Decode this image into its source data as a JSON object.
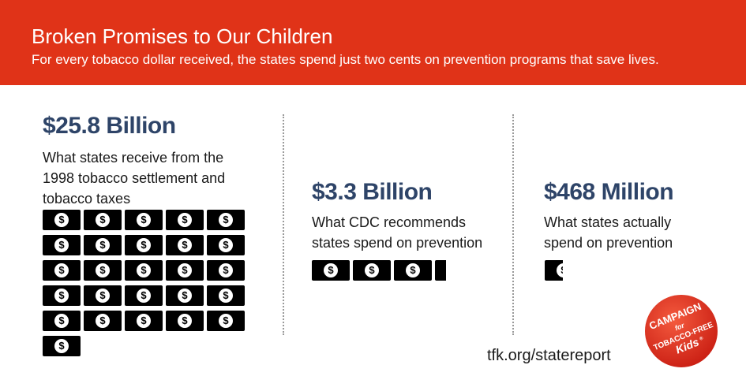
{
  "header": {
    "title": "Broken Promises to Our Children",
    "subtitle": "For every tobacco dollar received, the states spend just two cents on prevention programs that save lives."
  },
  "columns": [
    {
      "amount": "$25.8 Billion",
      "description": "What states receive from the 1998 tobacco settlement and tobacco taxes",
      "bill_count": 26
    },
    {
      "amount": "$3.3 Billion",
      "description": "What CDC recommends states spend on prevention",
      "bill_count": 3.3
    },
    {
      "amount": "$468 Million",
      "description": "What states actually spend on prevention",
      "bill_count": 0.47
    }
  ],
  "bill_symbol": "$",
  "footer": {
    "url": "tfk.org/statereport"
  },
  "logo": {
    "line1": "CAMPAIGN",
    "line2": "for",
    "line3": "TOBACCO-FREE",
    "line4": "Kids",
    "mark": "®"
  },
  "colors": {
    "banner": "#e03318",
    "amount_text": "#2e4468",
    "bill": "#000000",
    "logo_red": "#e52a1d"
  }
}
